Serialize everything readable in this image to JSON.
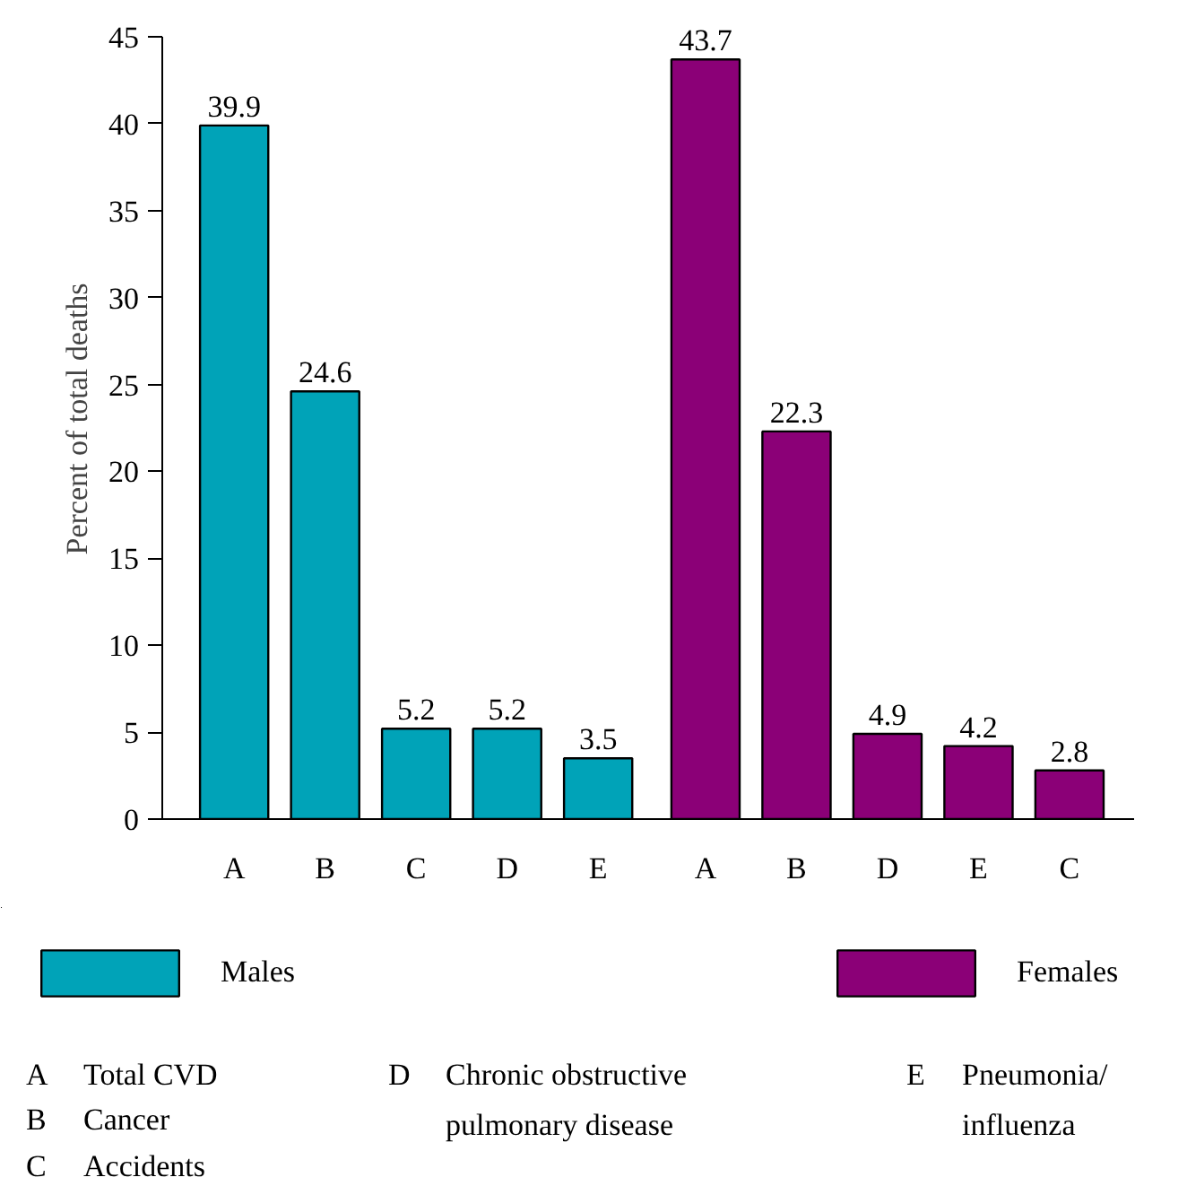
{
  "chart_data": {
    "type": "bar",
    "ylabel": "Percent of total deaths",
    "categories": [
      "A",
      "B",
      "C",
      "D",
      "E",
      "A",
      "B",
      "D",
      "E",
      "C"
    ],
    "series": [
      {
        "name": "Males",
        "color": "#00a3b8",
        "values": [
          39.9,
          24.6,
          5.2,
          5.2,
          3.5,
          null,
          null,
          null,
          null,
          null
        ]
      },
      {
        "name": "Females",
        "color": "#8b0077",
        "values": [
          null,
          null,
          null,
          null,
          null,
          43.7,
          22.3,
          4.9,
          4.2,
          2.8
        ]
      }
    ],
    "ylim": [
      0,
      45
    ],
    "yticks": [
      0,
      5,
      10,
      15,
      20,
      25,
      30,
      35,
      40,
      45
    ],
    "data_labels": true,
    "grid": false,
    "legend": "bottom",
    "annotations": [
      "A",
      "Total CVD",
      "B",
      "Cancer",
      "C",
      "Accidents",
      "D",
      "Chronic obstructive\npulmonary disease",
      "E",
      "Pneumonia/\ninfluenza"
    ]
  }
}
